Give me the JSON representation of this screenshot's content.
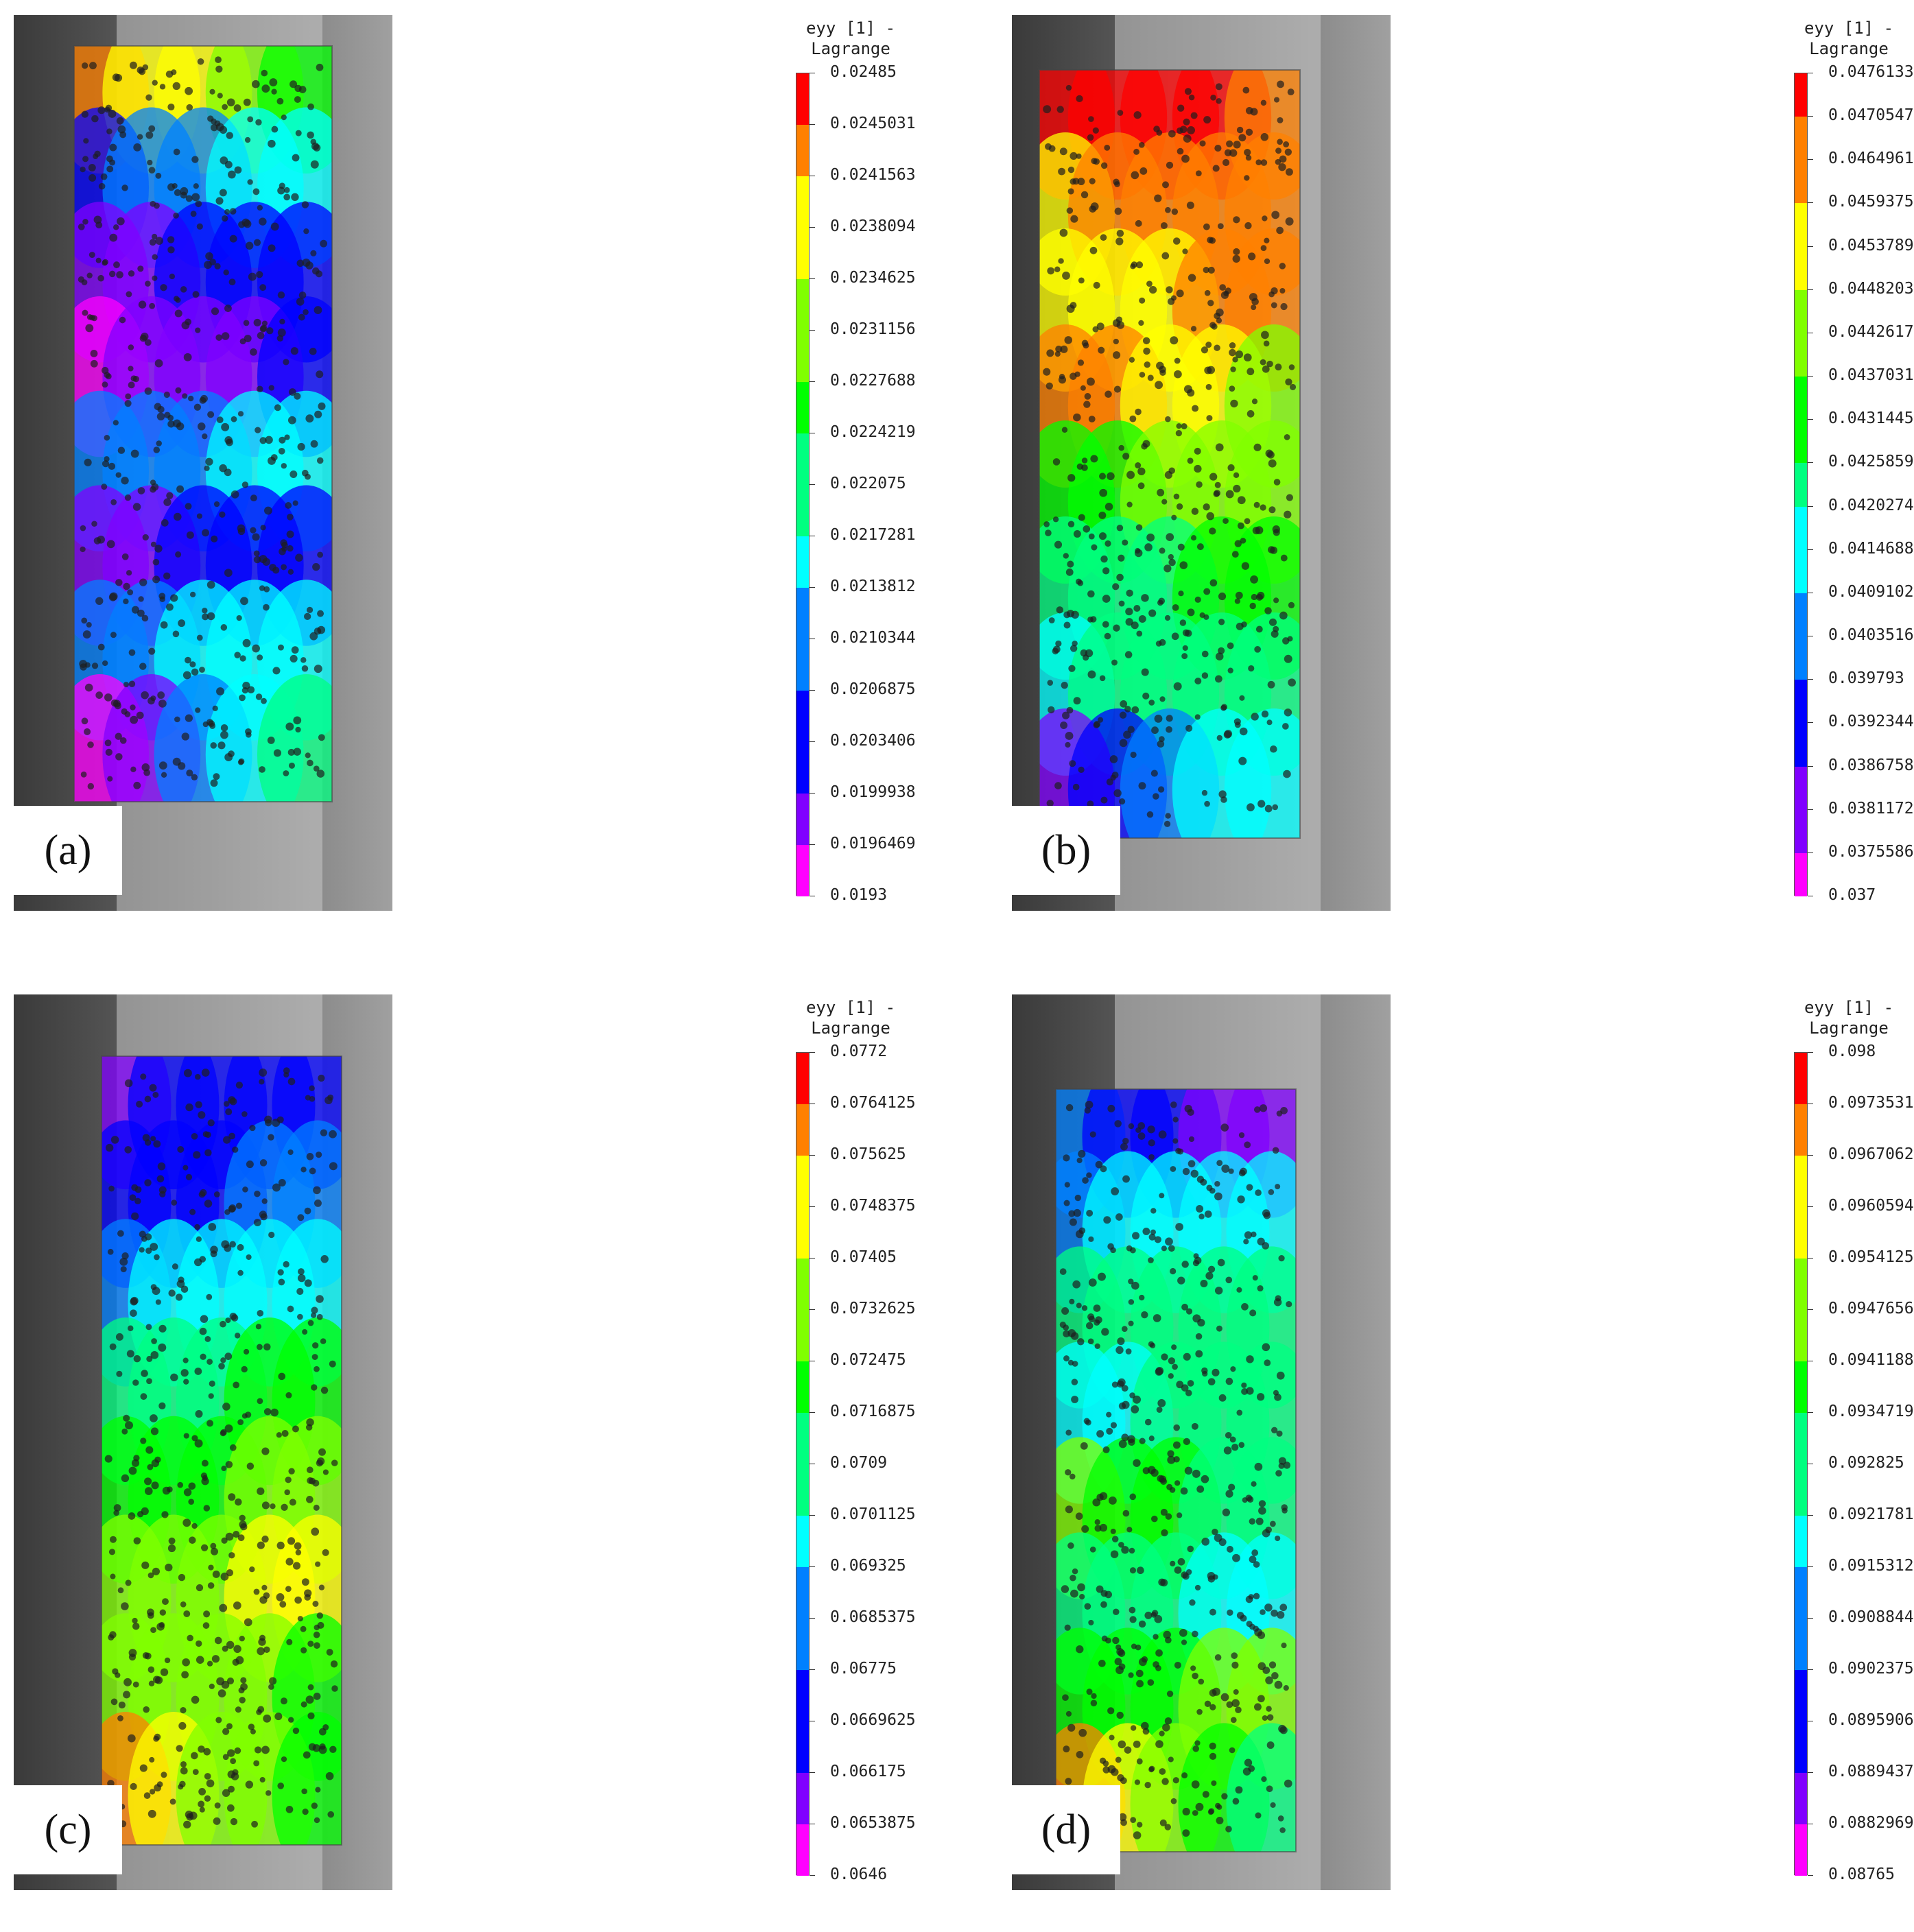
{
  "colors": {
    "scale": [
      "#ff00ff",
      "#8000ff",
      "#0000ff",
      "#0080ff",
      "#00ffff",
      "#00ff80",
      "#00ff00",
      "#80ff00",
      "#ffff00",
      "#ff8000",
      "#ff0000"
    ],
    "background_left": "#3a3a3a",
    "background_right": "#a0a0a0",
    "specimen": "#c8c8c8",
    "dots": "#1e1e1e"
  },
  "panels": [
    {
      "label": "(a)",
      "colorbar_title": "eyy [1] -\nLagrange",
      "colorbar_ticks": [
        "0.02485",
        "0.0245031",
        "0.0241563",
        "0.0238094",
        "0.0234625",
        "0.0231156",
        "0.0227688",
        "0.0224219",
        "0.022075",
        "0.0217281",
        "0.0213812",
        "0.0210344",
        "0.0206875",
        "0.0203406",
        "0.0199938",
        "0.0196469",
        "0.0193"
      ],
      "bands": [
        [
          0.9,
          0.62
        ],
        [
          0.22,
          0.4
        ],
        [
          0.12,
          0.2
        ],
        [
          0.05,
          0.18
        ],
        [
          0.28,
          0.38
        ],
        [
          0.12,
          0.22
        ],
        [
          0.3,
          0.45
        ],
        [
          0.02,
          0.5
        ]
      ]
    },
    {
      "label": "(b)",
      "colorbar_title": "eyy [1] -\nLagrange",
      "colorbar_ticks": [
        "0.0476133",
        "0.0470547",
        "0.0464961",
        "0.0459375",
        "0.0453789",
        "0.0448203",
        "0.0442617",
        "0.0437031",
        "0.0431445",
        "0.0425859",
        "0.0420274",
        "0.0414688",
        "0.0409102",
        "0.0403516",
        "0.039793",
        "0.0392344",
        "0.0386758",
        "0.0381172",
        "0.0375586",
        "0.037"
      ],
      "bands": [
        [
          0.98,
          0.95
        ],
        [
          0.85,
          0.95
        ],
        [
          0.78,
          0.9
        ],
        [
          0.9,
          0.75
        ],
        [
          0.62,
          0.72
        ],
        [
          0.5,
          0.6
        ],
        [
          0.45,
          0.5
        ],
        [
          0.1,
          0.45
        ]
      ]
    },
    {
      "label": "(c)",
      "colorbar_title": "eyy [1] -\nLagrange",
      "colorbar_ticks": [
        "0.0772",
        "0.0764125",
        "0.075625",
        "0.0748375",
        "0.07405",
        "0.0732625",
        "0.072475",
        "0.0716875",
        "0.0709",
        "0.0701125",
        "0.069325",
        "0.0685375",
        "0.06775",
        "0.0669625",
        "0.066175",
        "0.0653875",
        "0.0646"
      ],
      "bands": [
        [
          0.15,
          0.2
        ],
        [
          0.2,
          0.3
        ],
        [
          0.35,
          0.45
        ],
        [
          0.5,
          0.6
        ],
        [
          0.6,
          0.7
        ],
        [
          0.7,
          0.8
        ],
        [
          0.75,
          0.65
        ],
        [
          0.9,
          0.6
        ]
      ]
    },
    {
      "label": "(d)",
      "colorbar_title": "eyy [1] -\nLagrange",
      "colorbar_ticks": [
        "0.098",
        "0.0973531",
        "0.0967062",
        "0.0960594",
        "0.0954125",
        "0.0947656",
        "0.0941188",
        "0.0934719",
        "0.092825",
        "0.0921781",
        "0.0915312",
        "0.0908844",
        "0.0902375",
        "0.0895906",
        "0.0889437",
        "0.0882969",
        "0.08765"
      ],
      "bands": [
        [
          0.3,
          0.1
        ],
        [
          0.35,
          0.45
        ],
        [
          0.5,
          0.55
        ],
        [
          0.4,
          0.55
        ],
        [
          0.7,
          0.5
        ],
        [
          0.55,
          0.4
        ],
        [
          0.6,
          0.7
        ],
        [
          0.9,
          0.55
        ]
      ]
    }
  ]
}
